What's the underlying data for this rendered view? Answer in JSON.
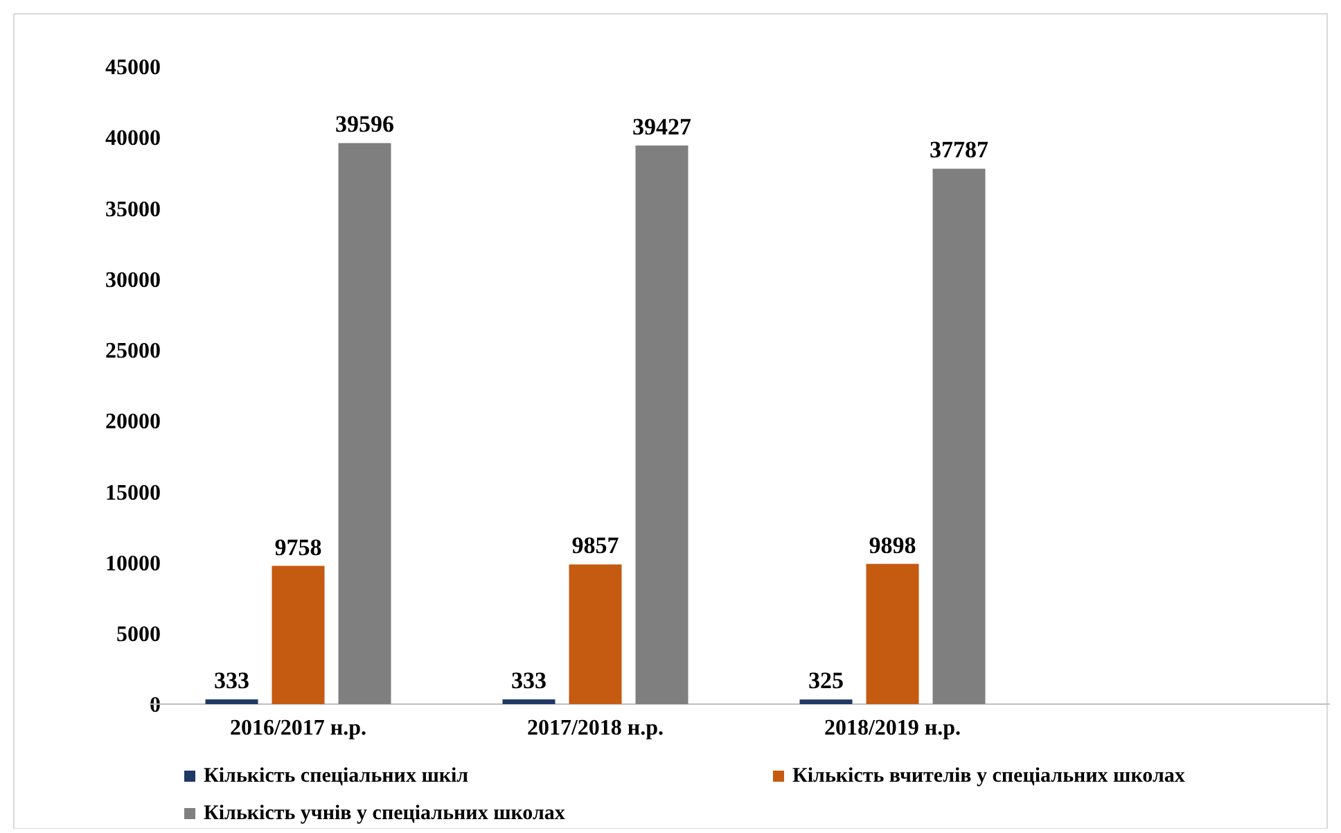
{
  "chart_data": {
    "type": "bar",
    "categories": [
      "2016/2017 н.р.",
      "2017/2018 н.р.",
      "2018/2019 н.р.",
      null
    ],
    "series": [
      {
        "name": "Кількість спеціальних шкіл",
        "color": "#1f3864",
        "values": [
          333,
          333,
          325,
          null
        ]
      },
      {
        "name": "Кількість вчителів у спеціальних школах",
        "color": "#c55a11",
        "values": [
          9758,
          9857,
          9898,
          null
        ]
      },
      {
        "name": "Кількість учнів у спеціальних школах",
        "color": "#7f7f7f",
        "values": [
          39596,
          39427,
          37787,
          null
        ]
      }
    ],
    "ylim": [
      0,
      45000
    ],
    "yticks": [
      0,
      5000,
      10000,
      15000,
      20000,
      25000,
      30000,
      35000,
      40000,
      45000
    ],
    "grid": false,
    "legend": "bottom",
    "data_labels": true
  }
}
